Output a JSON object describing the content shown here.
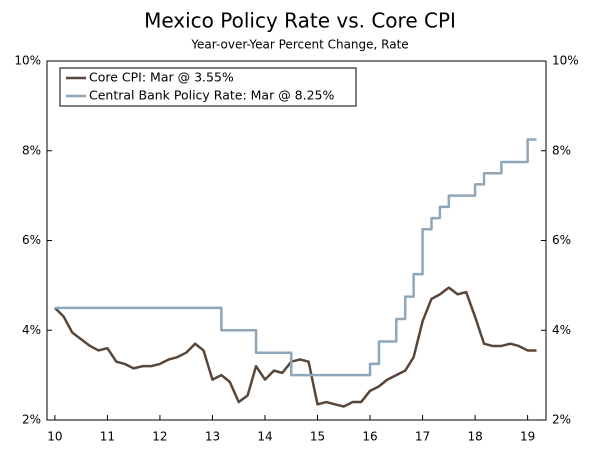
{
  "chart_data": {
    "type": "line",
    "title": "Mexico Policy Rate vs. Core CPI",
    "subtitle": "Year-over-Year Percent Change, Rate",
    "x": [
      10.0,
      10.17,
      10.33,
      10.5,
      10.67,
      10.83,
      11.0,
      11.17,
      11.33,
      11.5,
      11.67,
      11.83,
      12.0,
      12.17,
      12.33,
      12.5,
      12.67,
      12.83,
      13.0,
      13.17,
      13.33,
      13.5,
      13.67,
      13.83,
      14.0,
      14.17,
      14.33,
      14.5,
      14.67,
      14.83,
      15.0,
      15.17,
      15.33,
      15.5,
      15.67,
      15.83,
      16.0,
      16.17,
      16.33,
      16.5,
      16.67,
      16.83,
      17.0,
      17.17,
      17.33,
      17.5,
      17.67,
      17.83,
      18.0,
      18.17,
      18.33,
      18.5,
      18.67,
      18.83,
      19.0,
      19.17
    ],
    "series": [
      {
        "name": "Core CPI: Mar @ 3.55%",
        "color": "#5a4638",
        "step": false,
        "values": [
          4.5,
          4.3,
          3.95,
          3.8,
          3.65,
          3.55,
          3.6,
          3.3,
          3.25,
          3.15,
          3.2,
          3.2,
          3.25,
          3.35,
          3.4,
          3.5,
          3.7,
          3.55,
          2.9,
          3.0,
          2.85,
          2.4,
          2.55,
          3.2,
          2.9,
          3.1,
          3.05,
          3.3,
          3.35,
          3.3,
          2.35,
          2.4,
          2.35,
          2.3,
          2.4,
          2.4,
          2.65,
          2.75,
          2.9,
          3.0,
          3.1,
          3.4,
          4.2,
          4.7,
          4.8,
          4.95,
          4.8,
          4.85,
          4.3,
          3.7,
          3.65,
          3.65,
          3.7,
          3.65,
          3.55,
          3.55
        ]
      },
      {
        "name": "Central Bank Policy Rate: Mar @ 8.25%",
        "color": "#8fa7b8",
        "step": true,
        "values": [
          4.5,
          4.5,
          4.5,
          4.5,
          4.5,
          4.5,
          4.5,
          4.5,
          4.5,
          4.5,
          4.5,
          4.5,
          4.5,
          4.5,
          4.5,
          4.5,
          4.5,
          4.5,
          4.5,
          4.0,
          4.0,
          4.0,
          4.0,
          3.5,
          3.5,
          3.5,
          3.5,
          3.0,
          3.0,
          3.0,
          3.0,
          3.0,
          3.0,
          3.0,
          3.0,
          3.0,
          3.25,
          3.75,
          3.75,
          4.25,
          4.75,
          5.25,
          6.25,
          6.5,
          6.75,
          7.0,
          7.0,
          7.0,
          7.25,
          7.5,
          7.5,
          7.75,
          7.75,
          7.75,
          8.25,
          8.25
        ]
      }
    ],
    "xlim": [
      9.85,
      19.35
    ],
    "xticks": [
      10,
      11,
      12,
      13,
      14,
      15,
      16,
      17,
      18,
      19
    ],
    "ylim": [
      2,
      10
    ],
    "yticks": [
      {
        "value": 2,
        "label": "2%"
      },
      {
        "value": 4,
        "label": "4%"
      },
      {
        "value": 6,
        "label": "6%"
      },
      {
        "value": 8,
        "label": "8%"
      },
      {
        "value": 10,
        "label": "10%"
      }
    ],
    "y2lim": [
      2,
      10
    ],
    "y2ticks": [
      {
        "value": 2,
        "label": "2%"
      },
      {
        "value": 4,
        "label": "4%"
      },
      {
        "value": 6,
        "label": "6%"
      },
      {
        "value": 8,
        "label": "8%"
      },
      {
        "value": 10,
        "label": "10%"
      }
    ],
    "legend": "upper-left"
  }
}
